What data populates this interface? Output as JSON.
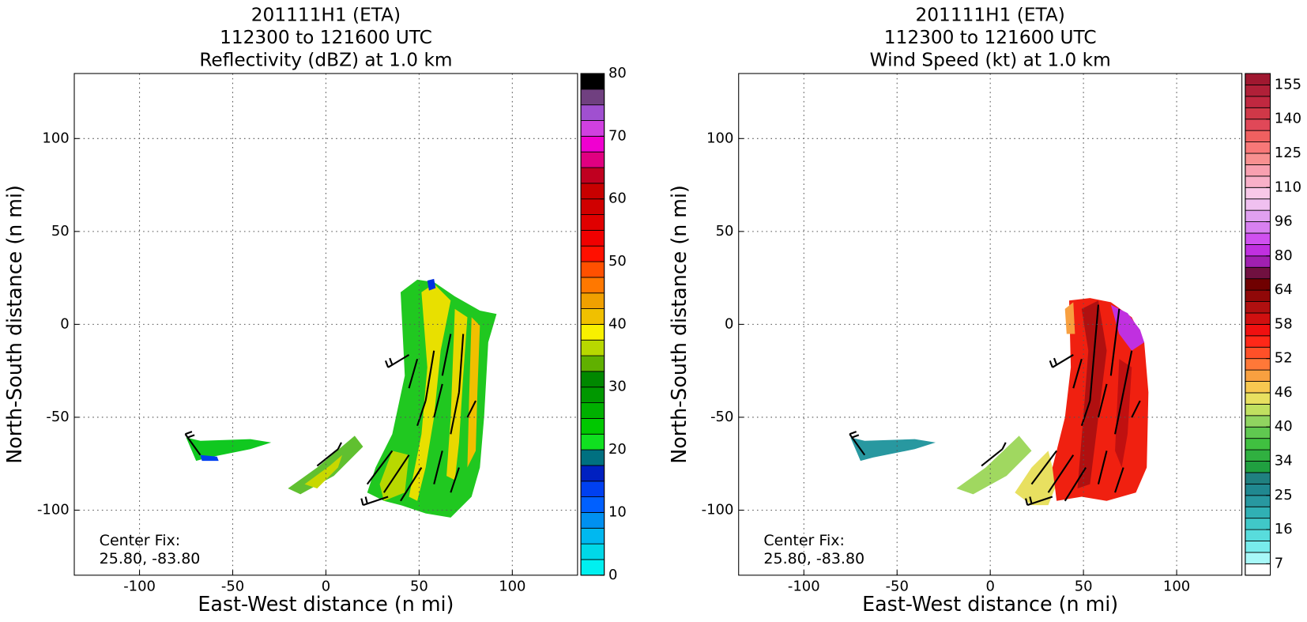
{
  "chart_data": [
    {
      "type": "heatmap",
      "title": "201111H1 (ETA)",
      "subtitle": [
        "112300 to 121600 UTC",
        "Reflectivity (dBZ) at 1.0 km"
      ],
      "x_label": "East-West distance (n mi)",
      "y_label": "North-South distance (n mi)",
      "xlim": [
        -135,
        135
      ],
      "ylim": [
        -135,
        135
      ],
      "xticks": [
        -100,
        -50,
        0,
        50,
        100
      ],
      "yticks": [
        -100,
        -50,
        0,
        50,
        100
      ],
      "grid": true,
      "annotation": [
        "Center Fix:",
        "25.80, -83.80"
      ],
      "colorbar": {
        "clim": [
          0,
          80
        ],
        "ticks": [
          0,
          10,
          20,
          30,
          40,
          50,
          60,
          70,
          80
        ],
        "colors": [
          "#00f0f0",
          "#00d8e8",
          "#00b8f0",
          "#0090f0",
          "#0060ff",
          "#0040f0",
          "#0020c0",
          "#007080",
          "#10e020",
          "#00c800",
          "#00b000",
          "#009800",
          "#008800",
          "#60b000",
          "#b8d800",
          "#f8f000",
          "#f0c000",
          "#f0a000",
          "#ff7800",
          "#ff5000",
          "#ff1000",
          "#f00000",
          "#e00000",
          "#d00000",
          "#c80000",
          "#c00020",
          "#e00080",
          "#f000d0",
          "#d040e0",
          "#a050d0",
          "#704080",
          "#000000"
        ]
      }
    },
    {
      "type": "heatmap",
      "title": "201111H1 (ETA)",
      "subtitle": [
        "112300 to 121600 UTC",
        "Wind Speed (kt) at 1.0 km"
      ],
      "x_label": "East-West distance (n mi)",
      "y_label": "North-South distance (n mi)",
      "xlim": [
        -135,
        135
      ],
      "ylim": [
        -135,
        135
      ],
      "xticks": [
        -100,
        -50,
        0,
        50,
        100
      ],
      "yticks": [
        -100,
        -50,
        0,
        50,
        100
      ],
      "grid": true,
      "annotation": [
        "Center Fix:",
        "25.80, -83.80"
      ],
      "colorbar": {
        "ticks": [
          7,
          16,
          25,
          34,
          40,
          46,
          52,
          58,
          64,
          80,
          96,
          110,
          125,
          140,
          155
        ],
        "colors": [
          "#ffffff",
          "#a8f8f8",
          "#78ecec",
          "#58dcdc",
          "#40c8c8",
          "#30b0b4",
          "#2898a0",
          "#208890",
          "#208080",
          "#20a040",
          "#30b040",
          "#40c040",
          "#60c850",
          "#90d460",
          "#c0e060",
          "#e8e060",
          "#f8c850",
          "#f8a040",
          "#ff7838",
          "#ff5028",
          "#ff2818",
          "#f01010",
          "#d01010",
          "#b01010",
          "#900808",
          "#700000",
          "#701040",
          "#a020b0",
          "#c030e0",
          "#d050f0",
          "#d880f0",
          "#e0a0f0",
          "#f0c0f0",
          "#f8c8e8",
          "#f8b0c8",
          "#f8a0b0",
          "#f89090",
          "#f87878",
          "#f06060",
          "#e04858",
          "#d03848",
          "#c02840",
          "#b02038",
          "#a01830"
        ]
      }
    }
  ]
}
